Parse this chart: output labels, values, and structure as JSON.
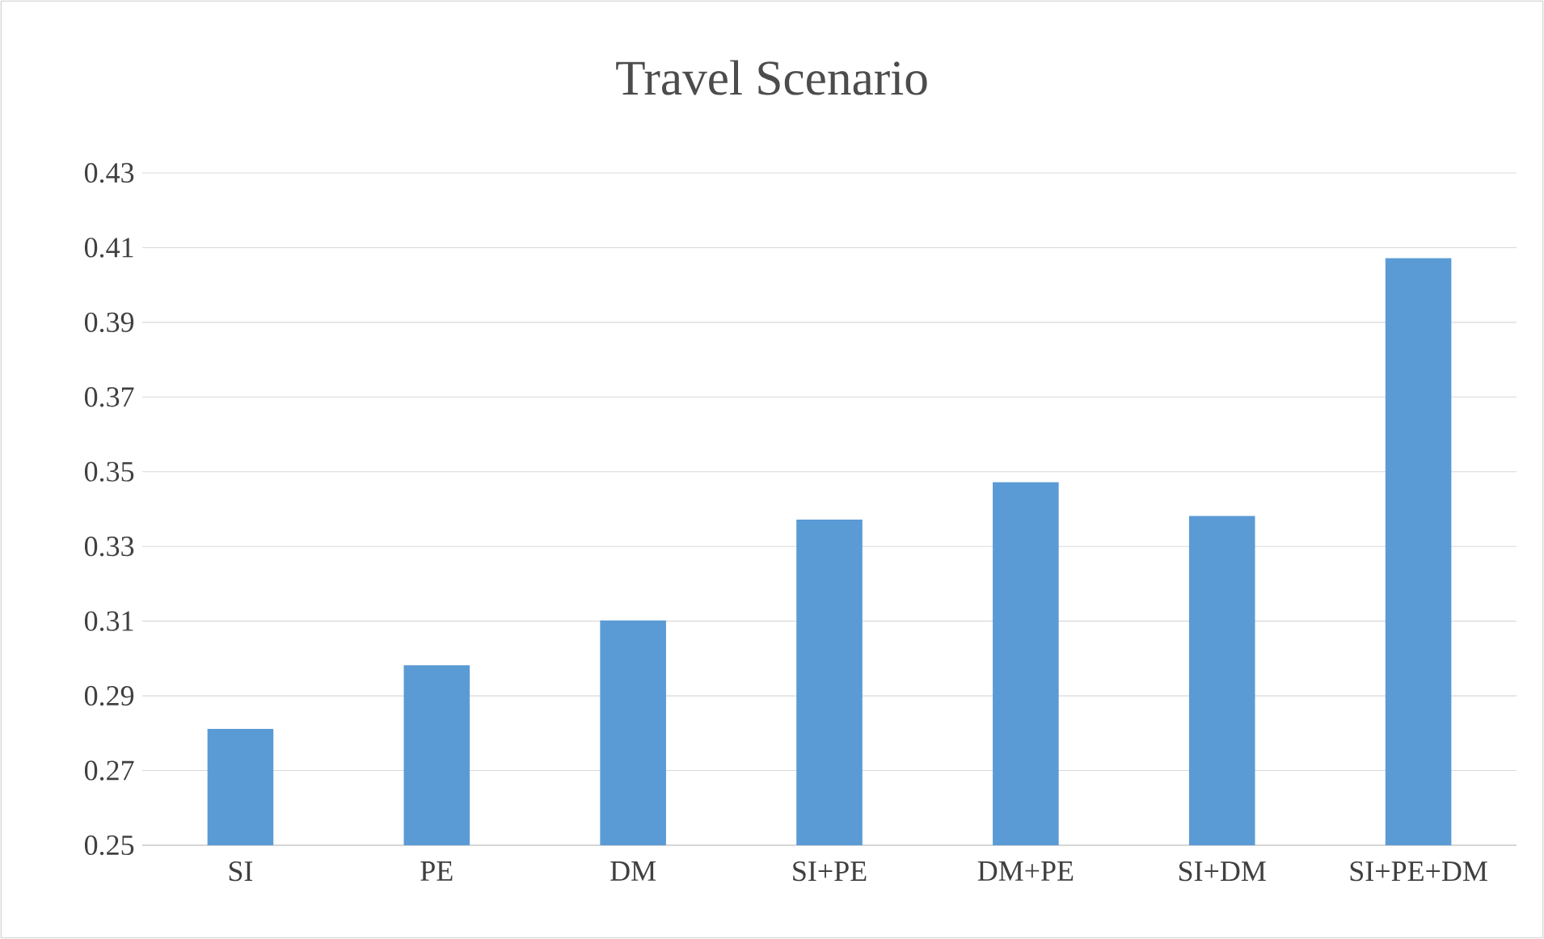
{
  "chart_data": {
    "type": "bar",
    "title": "Travel Scenario",
    "categories": [
      "SI",
      "PE",
      "DM",
      "SI+PE",
      "DM+PE",
      "SI+DM",
      "SI+PE+DM"
    ],
    "values": [
      0.281,
      0.298,
      0.31,
      0.337,
      0.347,
      0.338,
      0.407
    ],
    "color": "#5b9bd5",
    "ylim": [
      0.25,
      0.43
    ],
    "yticks": [
      0.25,
      0.27,
      0.29,
      0.31,
      0.33,
      0.35,
      0.37,
      0.39,
      0.41,
      0.43
    ],
    "grid": "y"
  }
}
